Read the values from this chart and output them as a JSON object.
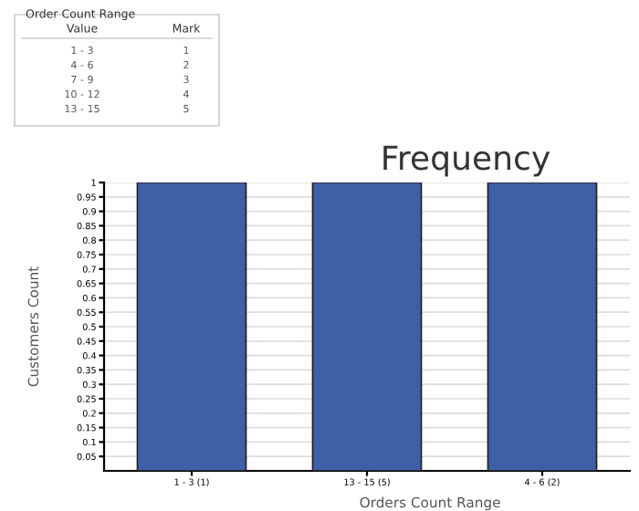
{
  "chart_data": {
    "type": "bar",
    "title": "Frequency",
    "xlabel": "Orders Count Range",
    "ylabel": "Customers Count",
    "categories": [
      "1 - 3 (1)",
      "13 - 15 (5)",
      "4 - 6 (2)"
    ],
    "values": [
      1,
      1,
      1
    ],
    "color": "#3f5fa6",
    "ylim": [
      0,
      1
    ],
    "yticks": [
      0.05,
      0.1,
      0.15,
      0.2,
      0.25,
      0.3,
      0.35,
      0.4,
      0.45,
      0.5,
      0.55,
      0.6,
      0.65,
      0.7,
      0.75,
      0.8,
      0.85,
      0.9,
      0.95,
      1
    ],
    "grid": "y",
    "annotations": [
      "Order Count Range",
      "Value",
      "Mark",
      "1 - 3",
      "1",
      "4 - 6",
      "2",
      "7 - 9",
      "3",
      "10 - 12",
      "4",
      "13 - 15",
      "5"
    ]
  }
}
